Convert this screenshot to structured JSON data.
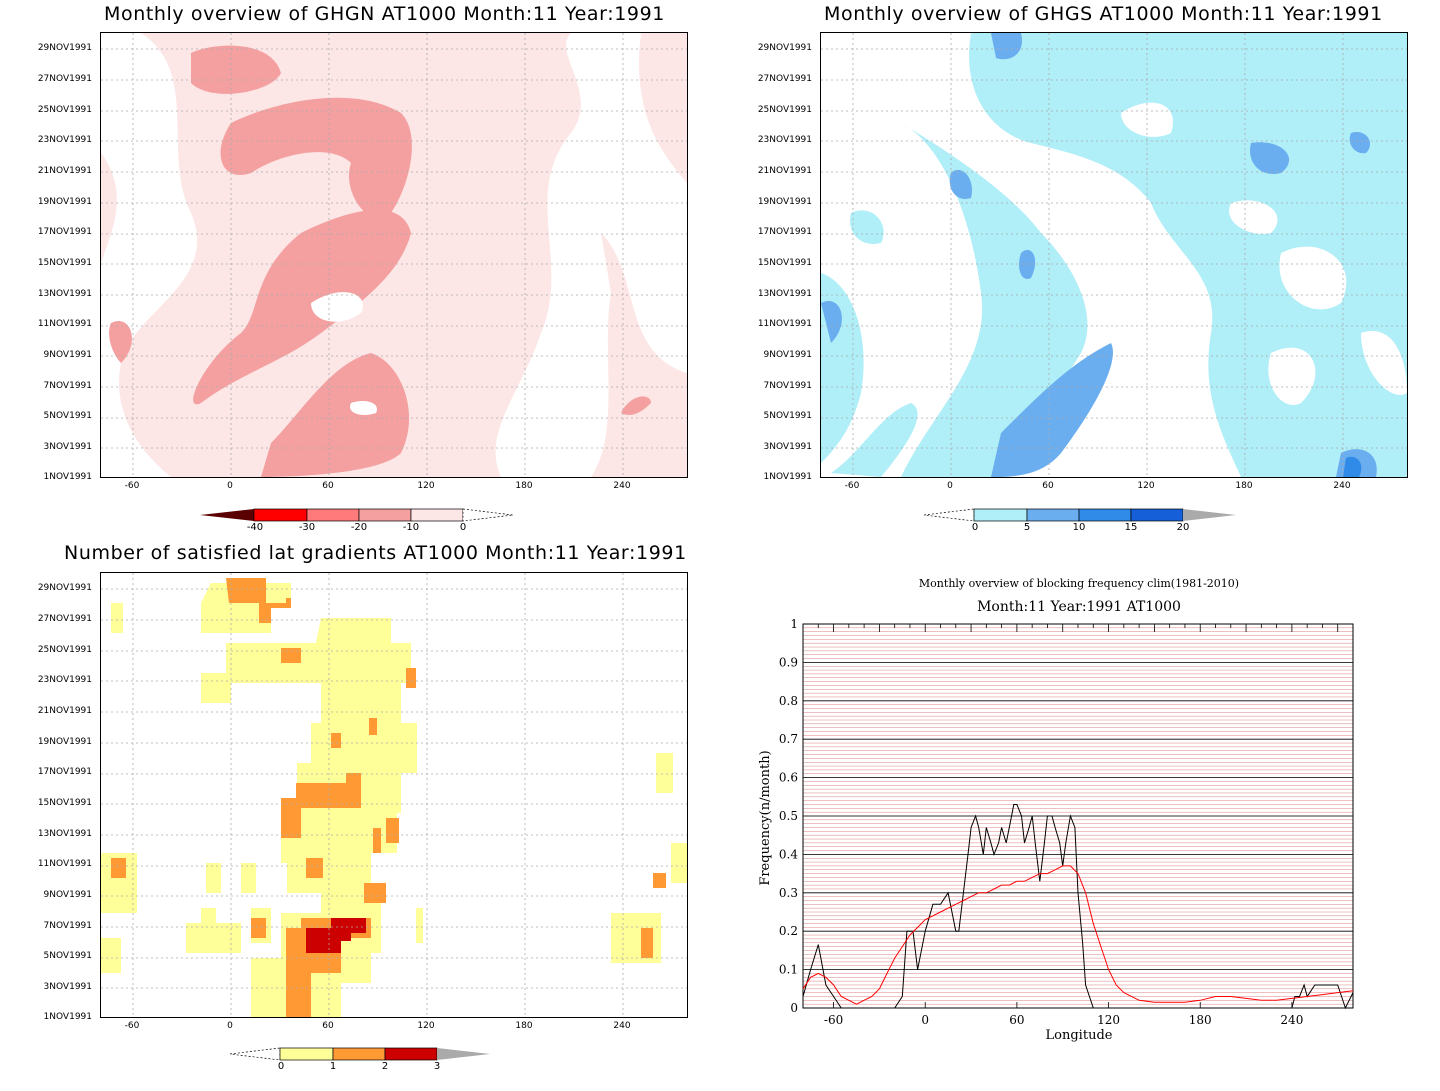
{
  "panels": {
    "ghgn": {
      "title": "Monthly overview of GHGN AT1000 Month:11 Year:1991",
      "colorbar_labels": [
        "-40",
        "-30",
        "-20",
        "-10",
        "0"
      ],
      "colors": {
        "lt-10": "#f4a0a0",
        "lt0": "#fde6e6",
        "c-20": "#ff7a7a",
        "c-30": "#ff0000",
        "c-40": "#b20000",
        "below": "#5a0000"
      }
    },
    "ghgs": {
      "title": "Monthly overview of GHGS AT1000 Month:11 Year:1991",
      "colorbar_labels": [
        "0",
        "5",
        "10",
        "15",
        "20"
      ],
      "colors": {
        "c0": "#b0eef8",
        "c5": "#6aaef0",
        "c10": "#2f8ae8",
        "c15": "#1560d8",
        "above": "#aaaaaa"
      }
    },
    "lat": {
      "title": "Number of satisfied lat gradients AT1000 Month:11 Year:1991",
      "colorbar_labels": [
        "0",
        "1",
        "2",
        "3"
      ],
      "colors": {
        "c0": "#ffff99",
        "c1": "#ff9933",
        "c2": "#cc0000",
        "above": "#aaaaaa"
      }
    }
  },
  "date_ticks": [
    "29NOV1991",
    "27NOV1991",
    "25NOV1991",
    "23NOV1991",
    "21NOV1991",
    "19NOV1991",
    "17NOV1991",
    "15NOV1991",
    "13NOV1991",
    "11NOV1991",
    "9NOV1991",
    "7NOV1991",
    "5NOV1991",
    "3NOV1991",
    "1NOV1991"
  ],
  "lon_ticks": [
    "-60",
    "0",
    "60",
    "120",
    "180",
    "240"
  ],
  "chart_data": {
    "type": "line",
    "title": "Monthly overview of blocking frequency clim(1981-2010)",
    "subtitle": "Month:11 Year:1991  AT1000",
    "xlabel": "Longitude",
    "ylabel": "Frequency(n/month)",
    "xlim": [
      -80,
      280
    ],
    "ylim": [
      0,
      1
    ],
    "x_ticks": [
      "-60",
      "0",
      "60",
      "120",
      "180",
      "240"
    ],
    "y_ticks": [
      "0",
      "0.1",
      "0.2",
      "0.3",
      "0.4",
      "0.5",
      "0.6",
      "0.7",
      "0.8",
      "0.9",
      "1"
    ],
    "series": [
      {
        "color": "#000000",
        "x": [
          -80,
          -75,
          -70,
          -65,
          -60,
          -55,
          -50,
          -45,
          -40,
          -35,
          -30,
          -25,
          -20,
          -15,
          -12,
          -8,
          -5,
          0,
          5,
          10,
          15,
          20,
          22,
          25,
          28,
          30,
          33,
          35,
          38,
          40,
          43,
          45,
          48,
          50,
          53,
          55,
          58,
          60,
          63,
          65,
          68,
          70,
          72,
          75,
          78,
          80,
          83,
          85,
          88,
          90,
          92,
          95,
          98,
          100,
          103,
          105,
          110,
          115,
          120,
          150,
          200,
          230,
          240,
          242,
          245,
          248,
          250,
          255,
          260,
          265,
          270,
          275,
          280
        ],
        "y": [
          0.03,
          0.1,
          0.165,
          0.06,
          0.03,
          0.0,
          0.0,
          0.0,
          0.0,
          0.0,
          0.0,
          0.0,
          0.0,
          0.03,
          0.2,
          0.2,
          0.1,
          0.2,
          0.27,
          0.27,
          0.3,
          0.2,
          0.2,
          0.3,
          0.4,
          0.47,
          0.5,
          0.47,
          0.4,
          0.47,
          0.43,
          0.4,
          0.43,
          0.47,
          0.43,
          0.47,
          0.53,
          0.53,
          0.5,
          0.43,
          0.47,
          0.5,
          0.43,
          0.33,
          0.43,
          0.5,
          0.5,
          0.47,
          0.43,
          0.37,
          0.43,
          0.5,
          0.47,
          0.3,
          0.17,
          0.06,
          0.0,
          0.0,
          0.0,
          0.0,
          0.0,
          0.0,
          0.0,
          0.03,
          0.03,
          0.06,
          0.03,
          0.06,
          0.06,
          0.06,
          0.06,
          0.0,
          0.04
        ]
      },
      {
        "color": "#ff0000",
        "x": [
          -80,
          -75,
          -70,
          -65,
          -60,
          -55,
          -50,
          -45,
          -40,
          -35,
          -30,
          -25,
          -20,
          -15,
          -10,
          -5,
          0,
          5,
          10,
          15,
          20,
          25,
          30,
          35,
          40,
          45,
          50,
          55,
          60,
          65,
          70,
          75,
          80,
          85,
          90,
          95,
          100,
          105,
          110,
          115,
          120,
          125,
          130,
          140,
          150,
          160,
          170,
          180,
          190,
          200,
          210,
          220,
          230,
          240,
          250,
          260,
          270,
          280
        ],
        "y": [
          0.05,
          0.08,
          0.09,
          0.08,
          0.06,
          0.03,
          0.02,
          0.01,
          0.02,
          0.03,
          0.05,
          0.09,
          0.13,
          0.16,
          0.19,
          0.21,
          0.23,
          0.24,
          0.25,
          0.26,
          0.27,
          0.28,
          0.29,
          0.3,
          0.3,
          0.31,
          0.32,
          0.32,
          0.33,
          0.33,
          0.34,
          0.35,
          0.35,
          0.36,
          0.37,
          0.37,
          0.35,
          0.3,
          0.22,
          0.16,
          0.1,
          0.06,
          0.04,
          0.02,
          0.015,
          0.015,
          0.015,
          0.02,
          0.03,
          0.03,
          0.025,
          0.02,
          0.02,
          0.025,
          0.03,
          0.035,
          0.04,
          0.045
        ]
      }
    ]
  }
}
